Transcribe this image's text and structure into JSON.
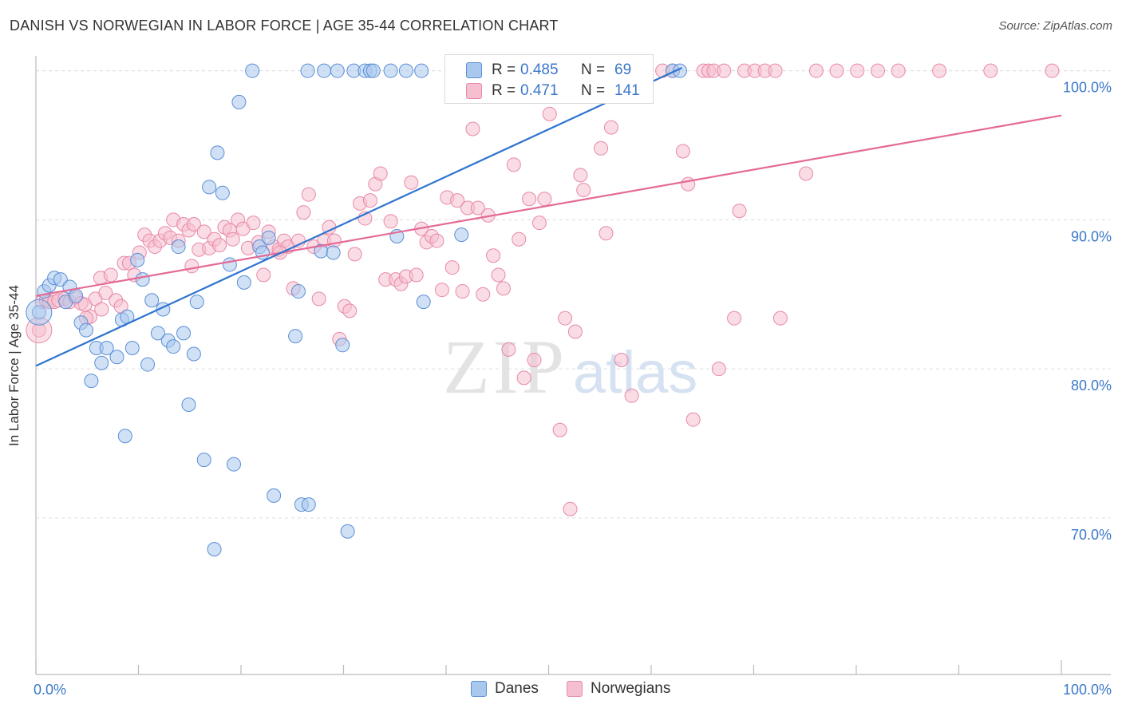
{
  "header": {
    "title": "DANISH VS NORWEGIAN IN LABOR FORCE | AGE 35-44 CORRELATION CHART",
    "source": "Source: ZipAtlas.com"
  },
  "watermark": {
    "zip": "ZIP",
    "atlas": "atlas"
  },
  "stats": {
    "danes": {
      "r_label": "R =",
      "r_value": "0.485",
      "n_label": "N =",
      "n_value": "69"
    },
    "norwegians": {
      "r_label": "R =",
      "r_value": "0.471",
      "n_label": "N =",
      "n_value": "141"
    }
  },
  "colors": {
    "danes_fill": "#a9c8ee",
    "danes_stroke": "#5b8fd6",
    "danes_line": "#2f74d0",
    "norwegians_fill": "#f6bfd0",
    "norwegians_stroke": "#e889a8",
    "norwegians_line": "#e46a96",
    "tick_text": "#3a78c9",
    "grid": "#dddddd"
  },
  "chart_data": {
    "type": "scatter",
    "title": "DANISH VS NORWEGIAN IN LABOR FORCE | AGE 35-44 CORRELATION CHART",
    "xlabel": "",
    "ylabel": "In Labor Force | Age 35-44",
    "xlim": [
      0,
      100
    ],
    "ylim": [
      59.5,
      101
    ],
    "x_tick_labels": [
      "0.0%",
      "100.0%"
    ],
    "y_ticks": [
      {
        "value": 100,
        "label": "100.0%"
      },
      {
        "value": 90,
        "label": "90.0%"
      },
      {
        "value": 80,
        "label": "80.0%"
      },
      {
        "value": 70,
        "label": "70.0%"
      }
    ],
    "grid": true,
    "legend_position": "bottom-center",
    "series": [
      {
        "name": "Danes",
        "trend": {
          "x": [
            0,
            63
          ],
          "y": [
            80.2,
            100.2
          ]
        },
        "points": [
          [
            0.3,
            83.8
          ],
          [
            0.8,
            85.2
          ],
          [
            1.3,
            85.6
          ],
          [
            1.8,
            86.1
          ],
          [
            2.4,
            86.0
          ],
          [
            2.9,
            84.5
          ],
          [
            3.3,
            85.5
          ],
          [
            3.9,
            84.9
          ],
          [
            4.4,
            83.1
          ],
          [
            4.9,
            82.6
          ],
          [
            5.4,
            79.2
          ],
          [
            5.9,
            81.4
          ],
          [
            6.4,
            80.4
          ],
          [
            6.9,
            81.4
          ],
          [
            7.9,
            80.8
          ],
          [
            8.4,
            83.3
          ],
          [
            8.9,
            83.5
          ],
          [
            8.7,
            75.5
          ],
          [
            9.4,
            81.4
          ],
          [
            9.9,
            87.3
          ],
          [
            10.4,
            86.0
          ],
          [
            10.9,
            80.3
          ],
          [
            11.3,
            84.6
          ],
          [
            11.9,
            82.4
          ],
          [
            12.4,
            84.0
          ],
          [
            12.9,
            81.9
          ],
          [
            13.4,
            81.5
          ],
          [
            13.9,
            88.2
          ],
          [
            14.4,
            82.4
          ],
          [
            14.9,
            77.6
          ],
          [
            15.4,
            81.0
          ],
          [
            15.7,
            84.5
          ],
          [
            16.4,
            73.9
          ],
          [
            16.9,
            92.2
          ],
          [
            17.4,
            67.9
          ],
          [
            17.7,
            94.5
          ],
          [
            18.2,
            91.8
          ],
          [
            18.9,
            87.0
          ],
          [
            19.3,
            73.6
          ],
          [
            19.8,
            97.9
          ],
          [
            20.3,
            85.8
          ],
          [
            21.1,
            100
          ],
          [
            21.8,
            88.2
          ],
          [
            22.1,
            87.8
          ],
          [
            22.7,
            88.8
          ],
          [
            23.2,
            71.5
          ],
          [
            25.3,
            82.2
          ],
          [
            25.6,
            85.2
          ],
          [
            25.9,
            70.9
          ],
          [
            26.6,
            70.9
          ],
          [
            27.8,
            87.9
          ],
          [
            29.0,
            87.8
          ],
          [
            29.9,
            81.6
          ],
          [
            30.4,
            69.1
          ],
          [
            26.5,
            100
          ],
          [
            28.1,
            100
          ],
          [
            29.4,
            100
          ],
          [
            31.0,
            100
          ],
          [
            32.1,
            100
          ],
          [
            32.6,
            100
          ],
          [
            32.9,
            100
          ],
          [
            34.6,
            100
          ],
          [
            35.2,
            88.9
          ],
          [
            36.1,
            100
          ],
          [
            37.6,
            100
          ],
          [
            37.8,
            84.5
          ],
          [
            41.5,
            89.0
          ],
          [
            62.1,
            100
          ],
          [
            62.8,
            100
          ]
        ]
      },
      {
        "name": "Norwegians",
        "trend": {
          "x": [
            0,
            100
          ],
          "y": [
            84.9,
            97.0
          ]
        },
        "points": [
          [
            0.3,
            82.6
          ],
          [
            0.6,
            84.5
          ],
          [
            1.0,
            84.6
          ],
          [
            1.3,
            84.5
          ],
          [
            1.8,
            84.5
          ],
          [
            2.2,
            84.6
          ],
          [
            2.8,
            84.7
          ],
          [
            3.3,
            84.5
          ],
          [
            3.8,
            84.8
          ],
          [
            4.4,
            84.4
          ],
          [
            4.8,
            84.3
          ],
          [
            5.3,
            83.5
          ],
          [
            5.8,
            84.7
          ],
          [
            6.3,
            86.1
          ],
          [
            6.8,
            85.1
          ],
          [
            7.3,
            86.3
          ],
          [
            7.8,
            84.6
          ],
          [
            8.3,
            84.2
          ],
          [
            8.6,
            87.1
          ],
          [
            9.1,
            87.1
          ],
          [
            9.6,
            86.3
          ],
          [
            10.1,
            87.8
          ],
          [
            10.6,
            89.0
          ],
          [
            11.1,
            88.6
          ],
          [
            11.6,
            88.2
          ],
          [
            12.1,
            88.6
          ],
          [
            12.6,
            89.1
          ],
          [
            13.1,
            88.8
          ],
          [
            13.4,
            90.0
          ],
          [
            13.9,
            88.6
          ],
          [
            14.4,
            89.7
          ],
          [
            14.9,
            89.3
          ],
          [
            15.4,
            89.7
          ],
          [
            15.9,
            88.0
          ],
          [
            16.4,
            89.2
          ],
          [
            16.9,
            88.1
          ],
          [
            17.4,
            88.7
          ],
          [
            17.9,
            88.3
          ],
          [
            18.4,
            89.5
          ],
          [
            18.9,
            89.3
          ],
          [
            19.2,
            88.7
          ],
          [
            19.7,
            90.0
          ],
          [
            20.2,
            89.4
          ],
          [
            20.7,
            88.1
          ],
          [
            21.2,
            89.8
          ],
          [
            21.7,
            88.5
          ],
          [
            22.2,
            86.3
          ],
          [
            22.7,
            89.2
          ],
          [
            23.2,
            88.2
          ],
          [
            23.7,
            88.0
          ],
          [
            24.2,
            88.6
          ],
          [
            24.6,
            88.2
          ],
          [
            25.1,
            85.4
          ],
          [
            25.6,
            88.6
          ],
          [
            26.1,
            90.5
          ],
          [
            26.6,
            91.7
          ],
          [
            27.1,
            88.2
          ],
          [
            27.6,
            84.7
          ],
          [
            28.1,
            88.6
          ],
          [
            28.6,
            89.5
          ],
          [
            29.1,
            88.6
          ],
          [
            29.6,
            82.0
          ],
          [
            30.1,
            84.2
          ],
          [
            30.6,
            83.9
          ],
          [
            31.1,
            87.7
          ],
          [
            31.6,
            91.1
          ],
          [
            32.1,
            90.1
          ],
          [
            32.6,
            91.3
          ],
          [
            33.1,
            92.4
          ],
          [
            33.6,
            93.1
          ],
          [
            34.1,
            86.0
          ],
          [
            34.6,
            89.9
          ],
          [
            35.1,
            86.0
          ],
          [
            35.6,
            85.7
          ],
          [
            36.1,
            86.2
          ],
          [
            36.6,
            92.5
          ],
          [
            37.1,
            86.3
          ],
          [
            37.6,
            89.4
          ],
          [
            38.1,
            88.5
          ],
          [
            38.6,
            88.9
          ],
          [
            39.1,
            88.6
          ],
          [
            39.6,
            85.3
          ],
          [
            40.1,
            91.5
          ],
          [
            40.6,
            86.8
          ],
          [
            41.1,
            91.3
          ],
          [
            41.6,
            85.2
          ],
          [
            42.1,
            90.8
          ],
          [
            42.6,
            96.1
          ],
          [
            43.1,
            90.8
          ],
          [
            43.6,
            85.0
          ],
          [
            44.1,
            90.3
          ],
          [
            44.6,
            87.6
          ],
          [
            45.1,
            86.3
          ],
          [
            45.6,
            85.4
          ],
          [
            46.1,
            81.3
          ],
          [
            46.6,
            93.7
          ],
          [
            47.1,
            88.7
          ],
          [
            47.6,
            79.4
          ],
          [
            48.1,
            91.4
          ],
          [
            48.6,
            80.6
          ],
          [
            49.1,
            89.8
          ],
          [
            49.6,
            91.4
          ],
          [
            50.1,
            97.1
          ],
          [
            51.1,
            75.9
          ],
          [
            51.6,
            83.4
          ],
          [
            52.1,
            70.6
          ],
          [
            52.6,
            82.5
          ],
          [
            53.1,
            93.0
          ],
          [
            53.4,
            92.0
          ],
          [
            55.1,
            94.8
          ],
          [
            55.6,
            89.1
          ],
          [
            56.1,
            96.2
          ],
          [
            57.1,
            80.6
          ],
          [
            58.1,
            78.2
          ],
          [
            59.1,
            100
          ],
          [
            61.1,
            100
          ],
          [
            62.1,
            100
          ],
          [
            63.1,
            94.6
          ],
          [
            63.6,
            92.4
          ],
          [
            64.1,
            76.6
          ],
          [
            65.1,
            100
          ],
          [
            65.6,
            100
          ],
          [
            66.1,
            100
          ],
          [
            66.6,
            80.0
          ],
          [
            67.1,
            100
          ],
          [
            68.1,
            83.4
          ],
          [
            68.6,
            90.6
          ],
          [
            69.1,
            100
          ],
          [
            70.1,
            100
          ],
          [
            71.1,
            100
          ],
          [
            72.1,
            100
          ],
          [
            72.6,
            83.4
          ],
          [
            75.1,
            93.1
          ],
          [
            76.1,
            100
          ],
          [
            78.1,
            100
          ],
          [
            80.1,
            100
          ],
          [
            82.1,
            100
          ],
          [
            84.1,
            100
          ],
          [
            88.1,
            100
          ],
          [
            93.1,
            100
          ],
          [
            99.1,
            100
          ],
          [
            4.9,
            83.4
          ],
          [
            6.4,
            84.0
          ],
          [
            15.2,
            86.9
          ],
          [
            23.8,
            87.8
          ]
        ]
      }
    ]
  },
  "legend": {
    "danes": "Danes",
    "norwegians": "Norwegians"
  }
}
